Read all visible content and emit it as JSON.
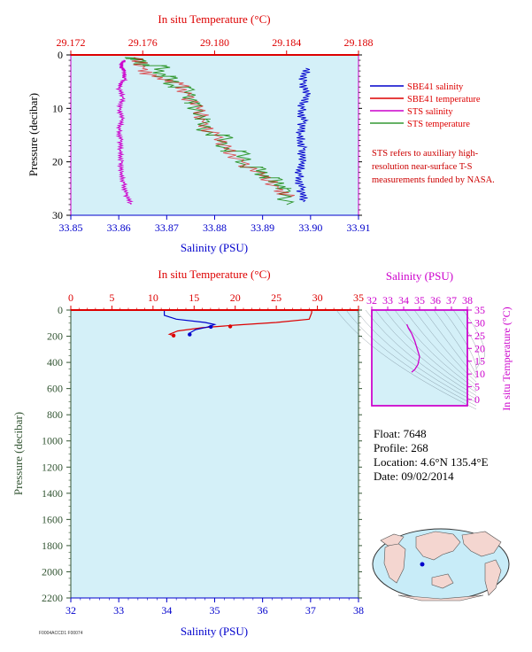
{
  "colors": {
    "red": "#dd0000",
    "blue": "#0000cc",
    "magenta": "#cc00cc",
    "green": "#339933",
    "plot_bg": "#d4f0f8",
    "dark_green_label": "#335533",
    "map_land": "#f4d6d0",
    "map_ocean": "#c8ecf8"
  },
  "top_chart": {
    "type": "line",
    "top_axis_label": "In situ Temperature (°C)",
    "bottom_axis_label": "Salinity (PSU)",
    "y_axis_label": "Pressure (decibar)",
    "temp_ticks": [
      "29.172",
      "29.176",
      "29.180",
      "29.184",
      "29.188"
    ],
    "temp_range": [
      29.172,
      29.188
    ],
    "sal_ticks": [
      "33.85",
      "33.86",
      "33.87",
      "33.88",
      "33.89",
      "33.90",
      "33.91"
    ],
    "sal_range": [
      33.85,
      33.91
    ],
    "pressure_ticks": [
      "0",
      "10",
      "20",
      "30"
    ],
    "pressure_range": [
      0,
      30
    ],
    "legend": [
      {
        "label": "SBE41 salinity",
        "color": "#0000cc"
      },
      {
        "label": "SBE41 temperature",
        "color": "#dd0000"
      },
      {
        "label": "STS salinity",
        "color": "#cc00cc"
      },
      {
        "label": "STS temperature",
        "color": "#339933"
      }
    ],
    "note": "STS refers to auxiliary high-resolution near-surface T-S measurements funded by NASA.",
    "series": [
      {
        "name": "STS salinity",
        "points": [
          [
            33.861,
            1.0
          ],
          [
            33.8605,
            2.0
          ],
          [
            33.861,
            3.0
          ],
          [
            33.8612,
            4.5
          ],
          [
            33.86,
            6.0
          ],
          [
            33.8608,
            8.0
          ],
          [
            33.8602,
            10.0
          ],
          [
            33.8606,
            12.0
          ],
          [
            33.86,
            14.0
          ],
          [
            33.8604,
            16.0
          ],
          [
            33.8602,
            18.0
          ],
          [
            33.8606,
            20.0
          ],
          [
            33.8603,
            22.0
          ],
          [
            33.861,
            24.0
          ],
          [
            33.8615,
            26.0
          ],
          [
            33.8625,
            28.0
          ]
        ]
      },
      {
        "name": "SBE41 salinity",
        "points": [
          [
            33.899,
            2.5
          ],
          [
            33.8985,
            5.0
          ],
          [
            33.899,
            7.5
          ],
          [
            33.898,
            10.0
          ],
          [
            33.8985,
            12.5
          ],
          [
            33.8975,
            15.0
          ],
          [
            33.8985,
            17.5
          ],
          [
            33.898,
            20.0
          ],
          [
            33.8975,
            22.5
          ],
          [
            33.898,
            25.0
          ],
          [
            33.8985,
            27.5
          ]
        ]
      },
      {
        "name": "STS temperature",
        "points": [
          [
            29.175,
            0.5
          ],
          [
            29.176,
            1.0
          ],
          [
            29.176,
            2.0
          ],
          [
            29.177,
            2.0
          ],
          [
            29.177,
            4.0
          ],
          [
            29.1775,
            4.0
          ],
          [
            29.1775,
            6.0
          ],
          [
            29.1785,
            6.0
          ],
          [
            29.1785,
            9.0
          ],
          [
            29.179,
            9.0
          ],
          [
            29.179,
            12.0
          ],
          [
            29.1795,
            12.0
          ],
          [
            29.1795,
            15.0
          ],
          [
            29.1805,
            15.0
          ],
          [
            29.1805,
            18.0
          ],
          [
            29.1815,
            18.0
          ],
          [
            29.1815,
            21.0
          ],
          [
            29.1825,
            21.0
          ],
          [
            29.1825,
            23.0
          ],
          [
            29.1835,
            23.0
          ],
          [
            29.1835,
            25.0
          ],
          [
            29.184,
            25.0
          ],
          [
            29.184,
            28.0
          ]
        ]
      },
      {
        "name": "SBE41 temperature",
        "points": [
          [
            29.1755,
            0.5
          ],
          [
            29.176,
            2.5
          ],
          [
            29.1765,
            4.0
          ],
          [
            29.178,
            5.5
          ],
          [
            29.1785,
            7.5
          ],
          [
            29.179,
            10.0
          ],
          [
            29.1793,
            12.5
          ],
          [
            29.18,
            15.0
          ],
          [
            29.1805,
            17.5
          ],
          [
            29.1815,
            20.0
          ],
          [
            29.1825,
            22.5
          ],
          [
            29.1835,
            25.0
          ],
          [
            29.1842,
            26.5
          ]
        ]
      }
    ]
  },
  "main_chart": {
    "type": "line",
    "top_axis_label": "In situ Temperature (°C)",
    "bottom_axis_label": "Salinity (PSU)",
    "y_axis_label": "Pressure (decibar)",
    "temp_ticks": [
      "0",
      "5",
      "10",
      "15",
      "20",
      "25",
      "30",
      "35"
    ],
    "temp_range": [
      0,
      35
    ],
    "sal_ticks": [
      "32",
      "33",
      "34",
      "35",
      "36",
      "37",
      "38"
    ],
    "sal_range": [
      32,
      38
    ],
    "pressure_ticks": [
      "0",
      "200",
      "400",
      "600",
      "800",
      "1000",
      "1200",
      "1400",
      "1600",
      "1800",
      "2000",
      "2200"
    ],
    "pressure_range": [
      0,
      2200
    ],
    "series": [
      {
        "name": "temperature",
        "points": [
          [
            29.3,
            0
          ],
          [
            29.3,
            20
          ],
          [
            29.0,
            70
          ],
          [
            25.0,
            95
          ],
          [
            20.0,
            115
          ],
          [
            16.0,
            135
          ],
          [
            13.0,
            160
          ],
          [
            12.0,
            185
          ],
          [
            12.5,
            195
          ]
        ],
        "markers": [
          [
            19.4,
            125
          ],
          [
            12.5,
            195
          ]
        ]
      },
      {
        "name": "salinity",
        "points": [
          [
            33.95,
            0
          ],
          [
            33.95,
            40
          ],
          [
            34.2,
            70
          ],
          [
            34.8,
            95
          ],
          [
            35.0,
            110
          ],
          [
            34.85,
            130
          ],
          [
            34.6,
            150
          ],
          [
            34.48,
            175
          ],
          [
            34.45,
            190
          ]
        ],
        "markers": [
          [
            34.92,
            128
          ],
          [
            34.48,
            187
          ]
        ]
      }
    ]
  },
  "ts_diagram": {
    "type": "line",
    "top_axis_label": "Salinity (PSU)",
    "right_axis_label": "In situ Temperature (°C)",
    "sal_ticks": [
      "32",
      "33",
      "34",
      "35",
      "36",
      "37",
      "38"
    ],
    "sal_range": [
      32,
      38
    ],
    "temp_ticks": [
      "35",
      "30",
      "25",
      "20",
      "15",
      "10",
      "5",
      "0"
    ],
    "temp_range": [
      -2,
      35
    ],
    "points": [
      [
        34.2,
        29.5
      ],
      [
        34.3,
        28.0
      ],
      [
        34.5,
        26.0
      ],
      [
        34.7,
        23.0
      ],
      [
        34.9,
        19.0
      ],
      [
        35.0,
        17.0
      ],
      [
        34.9,
        14.0
      ],
      [
        34.7,
        12.0
      ],
      [
        34.5,
        11.0
      ]
    ]
  },
  "info": {
    "float": "Float:  7648",
    "profile": "Profile:  268",
    "location": "Location:  4.6°N  135.4°E",
    "date": "Date:  09/02/2014"
  },
  "footer_code": "F0004ACCD1 F00074"
}
